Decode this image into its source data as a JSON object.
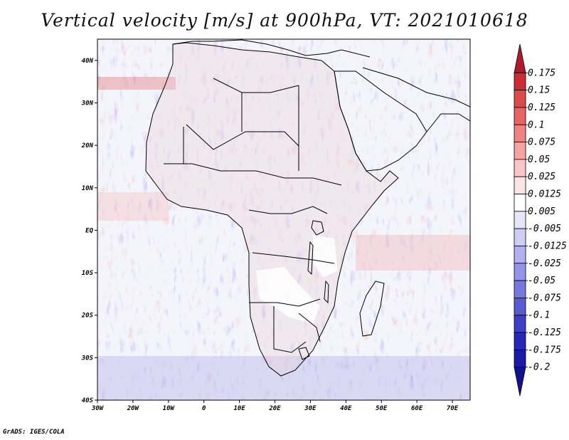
{
  "title": "Vertical velocity [m/s] at 900hPa, VT: 2021010618",
  "footer": "GrADS: IGES/COLA",
  "map": {
    "lon_range": [
      -30,
      75
    ],
    "lat_range": [
      -40,
      45
    ],
    "x_ticks": [
      "30W",
      "20W",
      "10W",
      "0",
      "10E",
      "20E",
      "30E",
      "40E",
      "50E",
      "60E",
      "70E"
    ],
    "y_ticks": [
      "40N",
      "30N",
      "20N",
      "10N",
      "EQ",
      "10S",
      "20S",
      "30S",
      "40S"
    ]
  },
  "colorbar": {
    "labels": [
      "0.175",
      "0.15",
      "0.125",
      "0.1",
      "0.075",
      "0.05",
      "0.025",
      "0.0125",
      "0.005",
      "-0.005",
      "-0.0125",
      "-0.025",
      "-0.05",
      "-0.075",
      "-0.1",
      "-0.125",
      "-0.175",
      "-0.2"
    ],
    "colors": [
      "#b2182b",
      "#cc2d35",
      "#dd4a4a",
      "#e86565",
      "#ef8383",
      "#f4a4a4",
      "#f8c6c6",
      "#fce4e4",
      "#ffffff",
      "#e6e6fb",
      "#cdcdf6",
      "#b1b1f0",
      "#9494e8",
      "#7777de",
      "#5a5ad3",
      "#3e3ec6",
      "#2727b8",
      "#1a1aa8",
      "#12128f"
    ]
  }
}
